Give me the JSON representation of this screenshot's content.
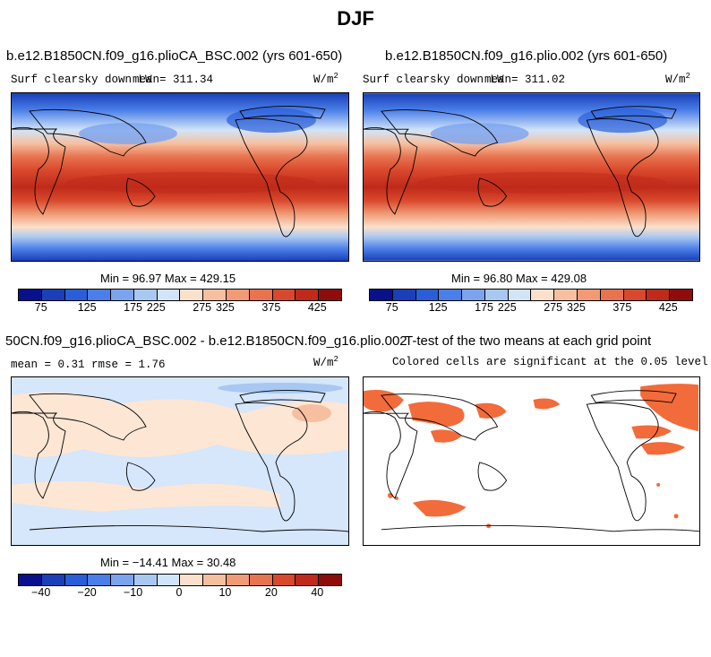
{
  "figure": {
    "title": "DJF"
  },
  "panels": {
    "top_left": {
      "case_title": "b.e12.B1850CN.f09_g16.plioCA_BSC.002 (yrs 601-650)",
      "variable": "Surf clearsky down LW",
      "mean_text": "mean= 311.34",
      "units_text": "W/m",
      "units_sup": "2",
      "minmax_text": "Min =  96.97 Max = 429.15"
    },
    "top_right": {
      "case_title": "b.e12.B1850CN.f09_g16.plio.002 (yrs 601-650)",
      "variable": "Surf clearsky down LW",
      "mean_text": "mean= 311.02",
      "units_text": "W/m",
      "units_sup": "2",
      "minmax_text": "Min =  96.80 Max = 429.08"
    },
    "bottom_left": {
      "case_title": "50CN.f09_g16.plioCA_BSC.002 - b.e12.B1850CN.f09_g16.plio.002",
      "stats_text": "mean =   0.31    rmse =   1.76",
      "units_text": "W/m",
      "units_sup": "2",
      "minmax_text": "Min = −14.41 Max =  30.48"
    },
    "bottom_right": {
      "case_title": "T-test of the two means at each grid point",
      "subtitle": "Colored cells are significant at the 0.05 level"
    }
  },
  "colorbars": {
    "abs": {
      "colors": [
        "#08108c",
        "#1a3fb8",
        "#2a5ed8",
        "#4a7ee8",
        "#7ba3ee",
        "#a8c8f2",
        "#d2e4f8",
        "#fbe0cc",
        "#f6c0a0",
        "#f19a76",
        "#e8734f",
        "#d9482c",
        "#bf2a1a",
        "#8e0c0c"
      ],
      "labels": [
        "75",
        "125",
        "175",
        "225",
        "275",
        "325",
        "375",
        "425"
      ]
    },
    "diff": {
      "colors": [
        "#08108c",
        "#1a3fb8",
        "#2a5ed8",
        "#4a7ee8",
        "#7ba3ee",
        "#a8c8f2",
        "#d2e4f8",
        "#fbe0cc",
        "#f6c0a0",
        "#f19a76",
        "#e8734f",
        "#d9482c",
        "#bf2a1a",
        "#8e0c0c"
      ],
      "labels": [
        "−40",
        "−20",
        "−10",
        "0",
        "10",
        "20",
        "40"
      ]
    }
  },
  "colors": {
    "significant": "#f26b3a",
    "diff_positive": "#fde6d4",
    "diff_negative": "#d6e6fb"
  }
}
